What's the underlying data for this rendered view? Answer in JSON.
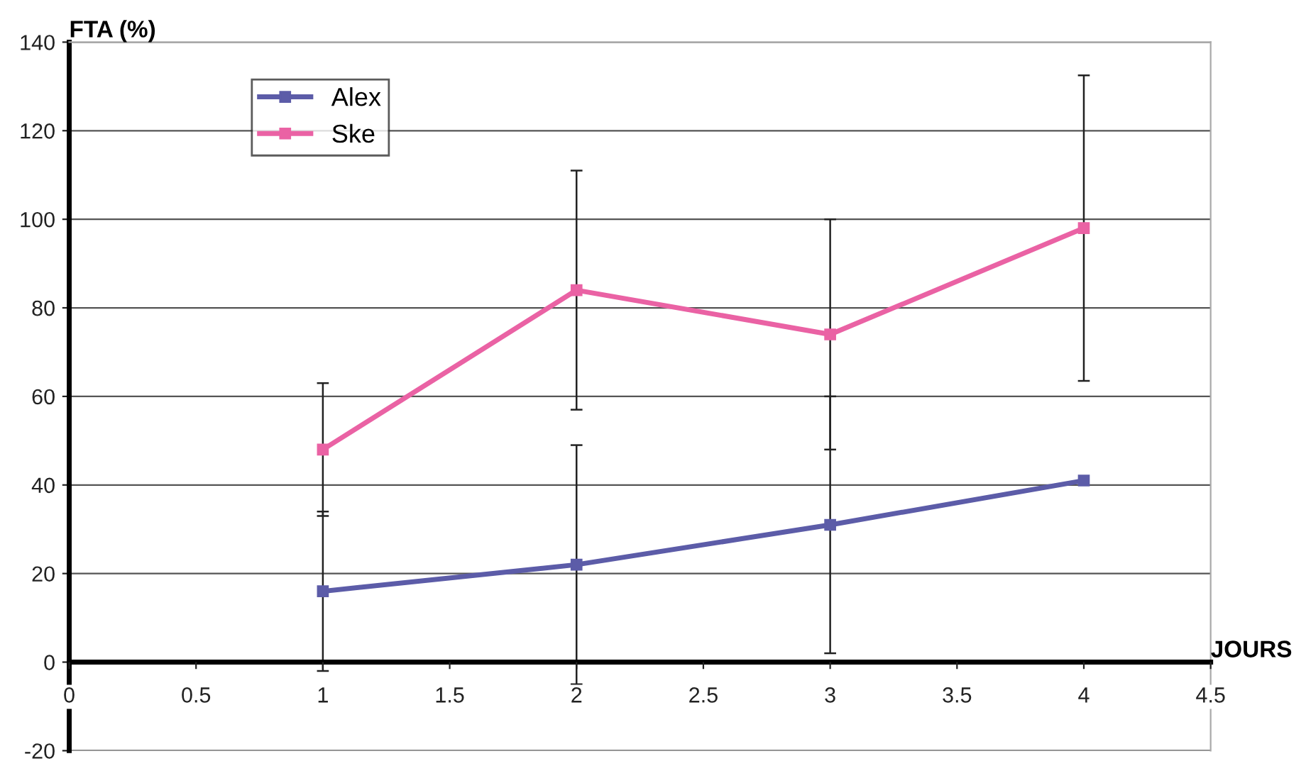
{
  "chart_data": {
    "type": "line",
    "xlabel": "JOURS",
    "ylabel": "FTA (%)",
    "x": [
      1,
      2,
      3,
      4
    ],
    "series": [
      {
        "name": "Alex",
        "color": "#5c5ca8",
        "values": [
          16,
          22,
          31,
          41
        ],
        "errors": [
          18,
          27,
          29,
          null
        ]
      },
      {
        "name": "Ske",
        "color": "#ea62a4",
        "values": [
          48,
          84,
          74,
          98
        ],
        "errors": [
          15,
          27,
          26,
          34.5
        ]
      }
    ],
    "xlim": [
      0,
      4.5
    ],
    "xticks": [
      0,
      0.5,
      1,
      1.5,
      2,
      2.5,
      3,
      3.5,
      4,
      4.5
    ],
    "ylim": [
      -20,
      140
    ],
    "yticks": [
      -20,
      0,
      20,
      40,
      60,
      80,
      100,
      120,
      140
    ],
    "grid": "y",
    "legend": "top left",
    "marker": "square",
    "line_style": "solid"
  }
}
